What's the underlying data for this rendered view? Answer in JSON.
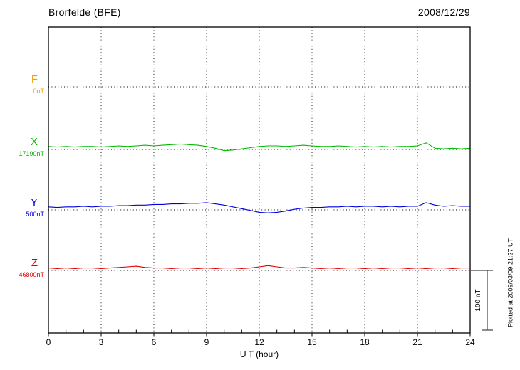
{
  "header": {
    "station": "Brorfelde (BFE)",
    "date": "2008/12/29"
  },
  "axis": {
    "xlabel": "U T (hour)",
    "ticks": [
      0,
      3,
      6,
      9,
      12,
      15,
      18,
      21,
      24
    ],
    "minor_tick_hours": 1
  },
  "scale_bar": {
    "label": "100 nT",
    "nT": 100
  },
  "footer_note": "Plotted at 2009/03/09 21:27 UT",
  "channels": [
    {
      "name": "F",
      "baseline_label": "0nT",
      "color": "#f0a000",
      "has_trace": false
    },
    {
      "name": "X",
      "baseline_label": "17190nT",
      "color": "#00bb00",
      "has_trace": true
    },
    {
      "name": "Y",
      "baseline_label": "500nT",
      "color": "#0000dd",
      "has_trace": true
    },
    {
      "name": "Z",
      "baseline_label": "46800nT",
      "color": "#dd0000",
      "has_trace": true
    }
  ],
  "chart_data": {
    "type": "line",
    "title": "Brorfelde (BFE) magnetogram 2008/12/29",
    "xlabel": "U T (hour)",
    "xlim": [
      0,
      24
    ],
    "x_ticks": [
      0,
      3,
      6,
      9,
      12,
      15,
      18,
      21,
      24
    ],
    "x_step_hours": 0.5,
    "scale_bar_nT": 100,
    "grid": "dotted vertical gridlines every 3 hours; dotted horizontal baseline per channel",
    "legend_position": "left margin channel labels",
    "series": [
      {
        "name": "X",
        "baseline_nT": 17190,
        "color": "#00bb00",
        "values_nT": [
          5,
          4,
          5,
          4,
          5,
          5,
          4,
          5,
          6,
          5,
          6,
          7,
          6,
          7,
          8,
          9,
          8,
          7,
          5,
          2,
          -2,
          -1,
          1,
          3,
          5,
          6,
          6,
          5,
          6,
          7,
          6,
          5,
          5,
          6,
          5,
          4,
          5,
          4,
          5,
          4,
          5,
          5,
          6,
          11,
          2,
          1,
          2,
          1,
          2
        ]
      },
      {
        "name": "Y",
        "baseline_nT": 500,
        "color": "#0000dd",
        "values_nT": [
          5,
          4,
          5,
          5,
          6,
          5,
          6,
          6,
          7,
          7,
          8,
          8,
          9,
          9,
          10,
          10,
          11,
          11,
          12,
          10,
          8,
          5,
          2,
          -1,
          -4,
          -5,
          -4,
          -2,
          1,
          3,
          4,
          4,
          5,
          5,
          6,
          5,
          6,
          6,
          5,
          6,
          5,
          6,
          6,
          12,
          8,
          6,
          7,
          6,
          6
        ]
      },
      {
        "name": "Z",
        "baseline_nT": 46800,
        "color": "#dd0000",
        "values_nT": [
          4,
          3,
          4,
          3,
          4,
          4,
          3,
          4,
          5,
          6,
          7,
          5,
          4,
          4,
          3,
          4,
          4,
          3,
          4,
          3,
          4,
          4,
          3,
          4,
          6,
          8,
          6,
          4,
          4,
          5,
          4,
          3,
          4,
          3,
          4,
          4,
          3,
          4,
          3,
          4,
          4,
          3,
          4,
          3,
          4,
          4,
          3,
          4,
          4
        ]
      }
    ],
    "series_without_trace": [
      {
        "name": "F",
        "baseline_nT": 0
      }
    ]
  }
}
